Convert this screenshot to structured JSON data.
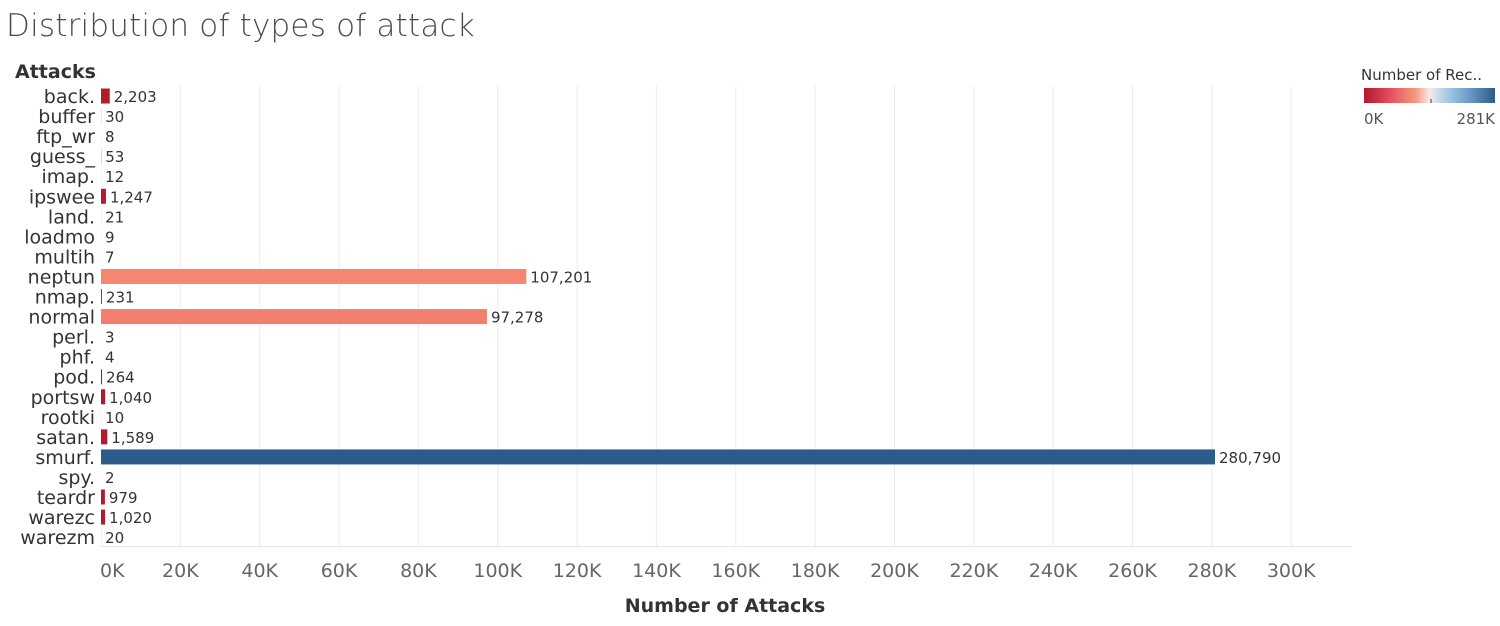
{
  "chart_data": {
    "type": "bar",
    "orientation": "horizontal",
    "title": "Distribution of types of attack",
    "ylabel": "Attacks",
    "xlabel": "Number of Attacks",
    "xlim": [
      0,
      310000
    ],
    "x_ticks": [
      0,
      20000,
      40000,
      60000,
      80000,
      100000,
      120000,
      140000,
      160000,
      180000,
      200000,
      220000,
      240000,
      260000,
      280000,
      300000
    ],
    "x_tick_labels": [
      "0K",
      "20K",
      "40K",
      "60K",
      "80K",
      "100K",
      "120K",
      "140K",
      "160K",
      "180K",
      "200K",
      "220K",
      "240K",
      "260K",
      "280K",
      "300K"
    ],
    "grid": true,
    "categories": [
      "back.",
      "buffer",
      "ftp_wr",
      "guess_",
      "imap.",
      "ipswee",
      "land.",
      "loadmo",
      "multih",
      "neptun",
      "nmap.",
      "normal",
      "perl.",
      "phf.",
      "pod.",
      "portsw",
      "rootki",
      "satan.",
      "smurf.",
      "spy.",
      "teardr",
      "warezc",
      "warezm"
    ],
    "values": [
      2203,
      30,
      8,
      53,
      12,
      1247,
      21,
      9,
      7,
      107201,
      231,
      97278,
      3,
      4,
      264,
      1040,
      10,
      1589,
      280790,
      2,
      979,
      1020,
      20
    ],
    "value_labels": [
      "2,203",
      "30",
      "8",
      "53",
      "12",
      "1,247",
      "21",
      "9",
      "7",
      "107,201",
      "231",
      "97,278",
      "3",
      "4",
      "264",
      "1,040",
      "10",
      "1,589",
      "280,790",
      "2",
      "979",
      "1,020",
      "20"
    ],
    "color_legend": {
      "title": "Number of Rec..",
      "min_label": "0K",
      "max_label": "281K",
      "min": 0,
      "max": 280790,
      "colors": [
        "#b2182b",
        "#d6404e",
        "#f4a582",
        "#f7f7f7",
        "#92c5de",
        "#4d8ab8",
        "#2d5b8a"
      ]
    }
  }
}
